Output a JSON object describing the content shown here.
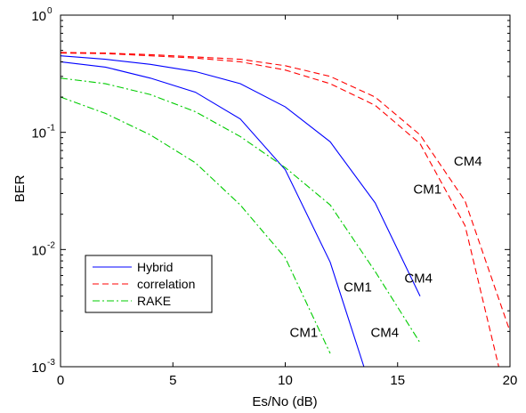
{
  "chart_data": {
    "type": "line",
    "xlabel": "Es/No (dB)",
    "ylabel": "BER",
    "xlim": [
      0,
      20
    ],
    "ylim": [
      0.001,
      1
    ],
    "y_scale": "log",
    "grid": false,
    "legend_position": "lower-left",
    "x_ticks": [
      "0",
      "5",
      "10",
      "15",
      "20"
    ],
    "y_ticks": [
      {
        "base": "10",
        "exp": "0",
        "value": 1
      },
      {
        "base": "10",
        "exp": "-1",
        "value": 0.1
      },
      {
        "base": "10",
        "exp": "-2",
        "value": 0.01
      },
      {
        "base": "10",
        "exp": "-3",
        "value": 0.001
      }
    ],
    "legend": [
      {
        "name": "Hybrid",
        "color": "#0000ff",
        "dash": "solid"
      },
      {
        "name": "correlation",
        "color": "#ff0000",
        "dash": "dashed"
      },
      {
        "name": "RAKE",
        "color": "#00cc00",
        "dash": "dashdot"
      }
    ],
    "series": [
      {
        "group": "Hybrid",
        "channel": "CM1",
        "color": "#0000ff",
        "dash": "solid",
        "x": [
          0,
          2,
          4,
          6,
          8,
          10,
          12,
          13.5
        ],
        "y": [
          0.4,
          0.36,
          0.29,
          0.22,
          0.13,
          0.048,
          0.0078,
          0.001
        ]
      },
      {
        "group": "Hybrid",
        "channel": "CM4",
        "color": "#0000ff",
        "dash": "solid",
        "x": [
          0,
          2,
          4,
          6,
          8,
          10,
          12,
          14,
          16
        ],
        "y": [
          0.45,
          0.42,
          0.38,
          0.33,
          0.26,
          0.165,
          0.083,
          0.025,
          0.004
        ]
      },
      {
        "group": "correlation",
        "channel": "CM1",
        "color": "#ff0000",
        "dash": "dashed",
        "x": [
          0,
          2,
          4,
          6,
          8,
          10,
          12,
          14,
          16,
          18,
          19.5
        ],
        "y": [
          0.475,
          0.47,
          0.45,
          0.43,
          0.4,
          0.34,
          0.26,
          0.17,
          0.08,
          0.016,
          0.001
        ]
      },
      {
        "group": "correlation",
        "channel": "CM4",
        "color": "#ff0000",
        "dash": "dashed",
        "x": [
          0,
          2,
          4,
          6,
          8,
          10,
          12,
          14,
          16,
          18,
          20
        ],
        "y": [
          0.48,
          0.475,
          0.46,
          0.44,
          0.42,
          0.37,
          0.3,
          0.2,
          0.095,
          0.026,
          0.002
        ]
      },
      {
        "group": "RAKE",
        "channel": "CM1",
        "color": "#00cc00",
        "dash": "dashdot",
        "x": [
          0,
          2,
          4,
          6,
          8,
          10,
          12
        ],
        "y": [
          0.2,
          0.145,
          0.095,
          0.055,
          0.024,
          0.0085,
          0.0013
        ]
      },
      {
        "group": "RAKE",
        "channel": "CM4",
        "color": "#00cc00",
        "dash": "dashdot",
        "x": [
          0,
          2,
          4,
          6,
          8,
          10,
          12,
          14,
          16
        ],
        "y": [
          0.29,
          0.26,
          0.21,
          0.15,
          0.092,
          0.05,
          0.024,
          0.0065,
          0.0016
        ]
      }
    ],
    "annotations": [
      {
        "text": "CM4",
        "x": 17.5,
        "y": 0.052
      },
      {
        "text": "CM1",
        "x": 15.7,
        "y": 0.03
      },
      {
        "text": "CM4",
        "x": 15.3,
        "y": 0.0052
      },
      {
        "text": "CM1",
        "x": 12.6,
        "y": 0.0044
      },
      {
        "text": "CM1",
        "x": 10.2,
        "y": 0.0018
      },
      {
        "text": "CM4",
        "x": 13.8,
        "y": 0.0018
      }
    ]
  }
}
